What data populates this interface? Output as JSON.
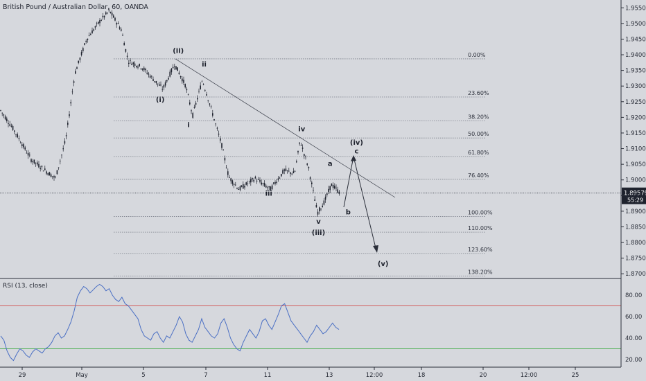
{
  "chart_data": {
    "type": "candlestick",
    "title": "British Pound / Australian Dollar, 60, OANDA",
    "price_axis": {
      "ticks": [
        "1.95500",
        "1.95000",
        "1.94500",
        "1.94000",
        "1.93500",
        "1.93000",
        "1.92500",
        "1.92000",
        "1.91500",
        "1.91000",
        "1.90500",
        "1.90000",
        "1.89500",
        "1.89000",
        "1.88500",
        "1.88000",
        "1.87500",
        "1.87000"
      ],
      "range": [
        1.8685,
        1.9575
      ]
    },
    "current_price": {
      "label": "1.89579",
      "value": 1.89579,
      "timer": "55:29"
    },
    "time_axis": {
      "ticks": [
        "29",
        "May",
        "5",
        "7",
        "11",
        "13",
        "12:00",
        "18",
        "20",
        "12:00",
        "25"
      ]
    },
    "fib_levels": [
      {
        "label": "0.00%",
        "price": 1.9387
      },
      {
        "label": "23.60%",
        "price": 1.9265
      },
      {
        "label": "38.20%",
        "price": 1.9189
      },
      {
        "label": "50.00%",
        "price": 1.9134
      },
      {
        "label": "61.80%",
        "price": 1.9075
      },
      {
        "label": "76.40%",
        "price": 1.9002
      },
      {
        "label": "100.00%",
        "price": 1.8883
      },
      {
        "label": "110.00%",
        "price": 1.8833
      },
      {
        "label": "123.60%",
        "price": 1.8765
      },
      {
        "label": "138.20%",
        "price": 1.8693
      }
    ],
    "wave_labels": [
      {
        "text": "(ii)",
        "price": 1.9406,
        "x": 0.276
      },
      {
        "text": "ii",
        "price": 1.9363,
        "x": 0.316
      },
      {
        "text": "(i)",
        "price": 1.925,
        "x": 0.248
      },
      {
        "text": "i",
        "price": 1.9169,
        "x": 0.292
      },
      {
        "text": "iv",
        "price": 1.9156,
        "x": 0.467
      },
      {
        "text": "iii",
        "price": 1.895,
        "x": 0.416
      },
      {
        "text": "v",
        "price": 1.886,
        "x": 0.493
      },
      {
        "text": "(iii)",
        "price": 1.8824,
        "x": 0.493
      },
      {
        "text": "a",
        "price": 1.9045,
        "x": 0.511
      },
      {
        "text": "b",
        "price": 1.889,
        "x": 0.539
      },
      {
        "text": "(iv)",
        "price": 1.9112,
        "x": 0.552
      },
      {
        "text": "c",
        "price": 1.9085,
        "x": 0.552
      },
      {
        "text": "(v)",
        "price": 1.8725,
        "x": 0.593
      }
    ],
    "rsi": {
      "label": "RSI (13, close)",
      "ticks": [
        "80.00",
        "60.00",
        "40.00",
        "20.00"
      ],
      "upper": 70,
      "lower": 30,
      "values": [
        42,
        38,
        28,
        22,
        19,
        25,
        30,
        28,
        24,
        22,
        27,
        30,
        28,
        26,
        30,
        32,
        36,
        42,
        45,
        40,
        42,
        48,
        55,
        65,
        78,
        84,
        88,
        86,
        82,
        85,
        88,
        90,
        88,
        84,
        86,
        80,
        76,
        74,
        78,
        72,
        70,
        66,
        62,
        58,
        48,
        42,
        40,
        38,
        44,
        46,
        40,
        36,
        42,
        40,
        46,
        52,
        60,
        55,
        44,
        38,
        36,
        42,
        48,
        58,
        50,
        46,
        42,
        40,
        44,
        54,
        58,
        50,
        40,
        34,
        30,
        28,
        36,
        42,
        48,
        44,
        40,
        46,
        56,
        58,
        52,
        48,
        55,
        62,
        70,
        72,
        64,
        56,
        52,
        48,
        44,
        40,
        36,
        42,
        46,
        52,
        48,
        44,
        46,
        50,
        54,
        50,
        48
      ]
    },
    "grid": false
  },
  "colors": {
    "background": "#d6d8dd",
    "candle": "#1e222d",
    "fib_line": "#7a7e89",
    "price_line": "#1e222d",
    "rsi_line": "#4a6fc4",
    "rsi_upper": "#d35c5c",
    "rsi_lower": "#4caf50",
    "price_badge": "#1e222d"
  }
}
